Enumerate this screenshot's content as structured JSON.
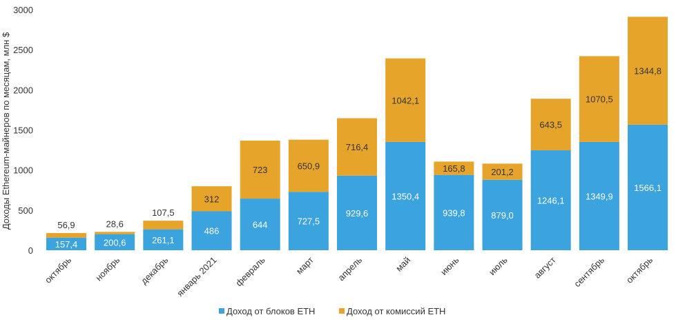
{
  "chart_data": {
    "type": "bar",
    "stacked": true,
    "title": "",
    "xlabel": "",
    "ylabel": "Доходы Ethereum-майнеров по месяцам, млн $",
    "ylim": [
      0,
      3000
    ],
    "yticks": [
      0,
      500,
      1000,
      1500,
      2000,
      2500,
      3000
    ],
    "grid": false,
    "legend_position": "bottom",
    "categories": [
      "октябрь",
      "ноябрь",
      "декабрь",
      "январь 2021",
      "февраль",
      "март",
      "апрель",
      "май",
      "июнь",
      "июль",
      "август",
      "сентябрь",
      "октябрь"
    ],
    "series": [
      {
        "name": "Доход от блоков ETH",
        "color": "#3ba3de",
        "values": [
          157.4,
          200.6,
          261.1,
          486,
          644,
          727.5,
          929.6,
          1350.4,
          939.8,
          879.0,
          1246.1,
          1349.9,
          1566.1
        ],
        "labels": [
          "157,4",
          "200,6",
          "261,1",
          "486",
          "644",
          "727,5",
          "929,6",
          "1350,4",
          "939,8",
          "879,0",
          "1246,1",
          "1349,9",
          "1566,1"
        ]
      },
      {
        "name": "Доход от комиссий ETH",
        "color": "#e6a52a",
        "values": [
          56.9,
          28.6,
          107.5,
          312,
          723,
          650.9,
          716.4,
          1042.1,
          165.8,
          201.2,
          643.5,
          1070.5,
          1344.8
        ],
        "labels": [
          "56,9",
          "28,6",
          "107,5",
          "312",
          "723",
          "650,9",
          "716,4",
          "1042,1",
          "165,8",
          "201,2",
          "643,5",
          "1070,5",
          "1344,8"
        ]
      }
    ]
  }
}
